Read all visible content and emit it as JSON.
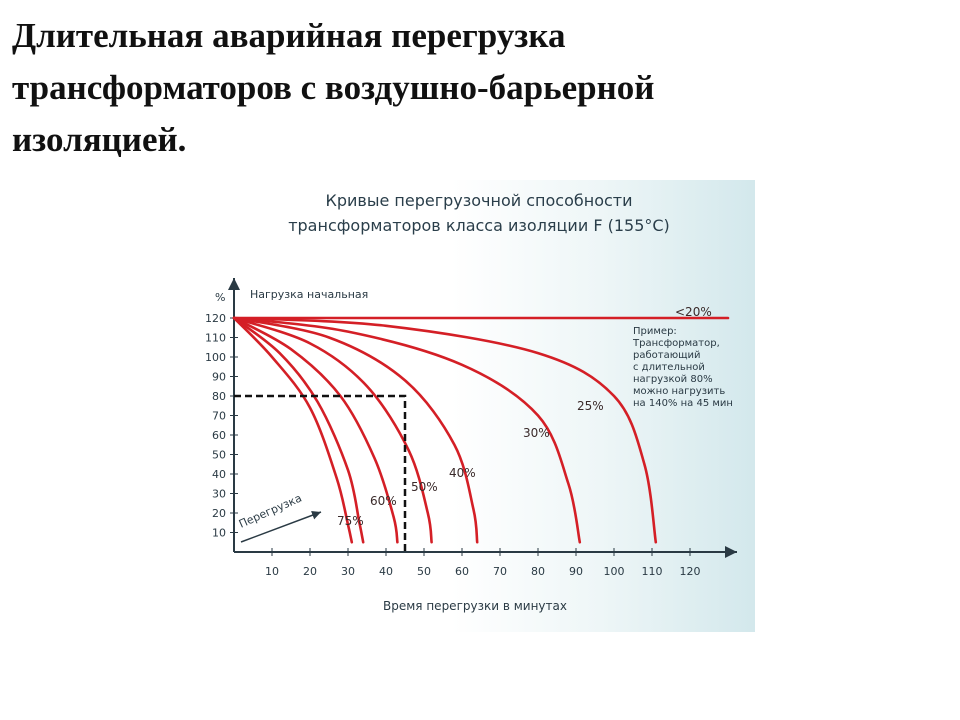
{
  "slide": {
    "title_lines": [
      "Длительная аварийная перегрузка",
      "трансформаторов с воздушно-барьерной",
      "изоляцией."
    ]
  },
  "chart_data": {
    "type": "line",
    "title_lines": [
      "Кривые перегрузочной способности",
      "трансформаторов класса изоляции F (155°C)"
    ],
    "xlabel": "Время перегрузки в минутах",
    "ylabel": "%",
    "y_axis_caption": "Нагрузка начальная",
    "arrow_label": "Перегрузка",
    "xlim": [
      0,
      130
    ],
    "ylim": [
      0,
      130
    ],
    "x_ticks": [
      10,
      20,
      30,
      40,
      50,
      60,
      70,
      80,
      90,
      100,
      110,
      120
    ],
    "y_ticks": [
      10,
      20,
      30,
      40,
      50,
      60,
      70,
      80,
      90,
      100,
      110,
      120
    ],
    "grid": false,
    "series_color": "#d41f26",
    "series": [
      {
        "name": "<20%",
        "x": [
          0,
          130
        ],
        "y": [
          120,
          120
        ]
      },
      {
        "name": "25%",
        "x": [
          0,
          40,
          80,
          100,
          108,
          111
        ],
        "y": [
          120,
          116,
          102,
          80,
          45,
          5
        ]
      },
      {
        "name": "30%",
        "x": [
          0,
          30,
          60,
          80,
          88,
          91
        ],
        "y": [
          120,
          113,
          96,
          70,
          35,
          5
        ]
      },
      {
        "name": "40%",
        "x": [
          0,
          25,
          45,
          58,
          63,
          64
        ],
        "y": [
          120,
          110,
          88,
          55,
          22,
          5
        ]
      },
      {
        "name": "50%",
        "x": [
          0,
          20,
          35,
          46,
          51,
          52
        ],
        "y": [
          120,
          107,
          85,
          52,
          20,
          5
        ]
      },
      {
        "name": "60%",
        "x": [
          0,
          15,
          28,
          37,
          42,
          43
        ],
        "y": [
          120,
          104,
          80,
          48,
          18,
          5
        ]
      },
      {
        "name": "75%",
        "x": [
          0,
          12,
          22,
          30,
          33,
          34
        ],
        "y": [
          120,
          102,
          77,
          42,
          15,
          5
        ]
      },
      {
        "name": "",
        "x": [
          0,
          10,
          20,
          27,
          30,
          31
        ],
        "y": [
          120,
          100,
          74,
          38,
          14,
          5
        ]
      }
    ],
    "example_marker": {
      "initial_load": 80,
      "time_min": 45
    },
    "annotation_lines": [
      "Пример:",
      "Трансформатор,",
      "работающий",
      "с длительной",
      "нагрузкой 80%",
      "можно нагрузить",
      "на 140% на 45 мин"
    ]
  }
}
